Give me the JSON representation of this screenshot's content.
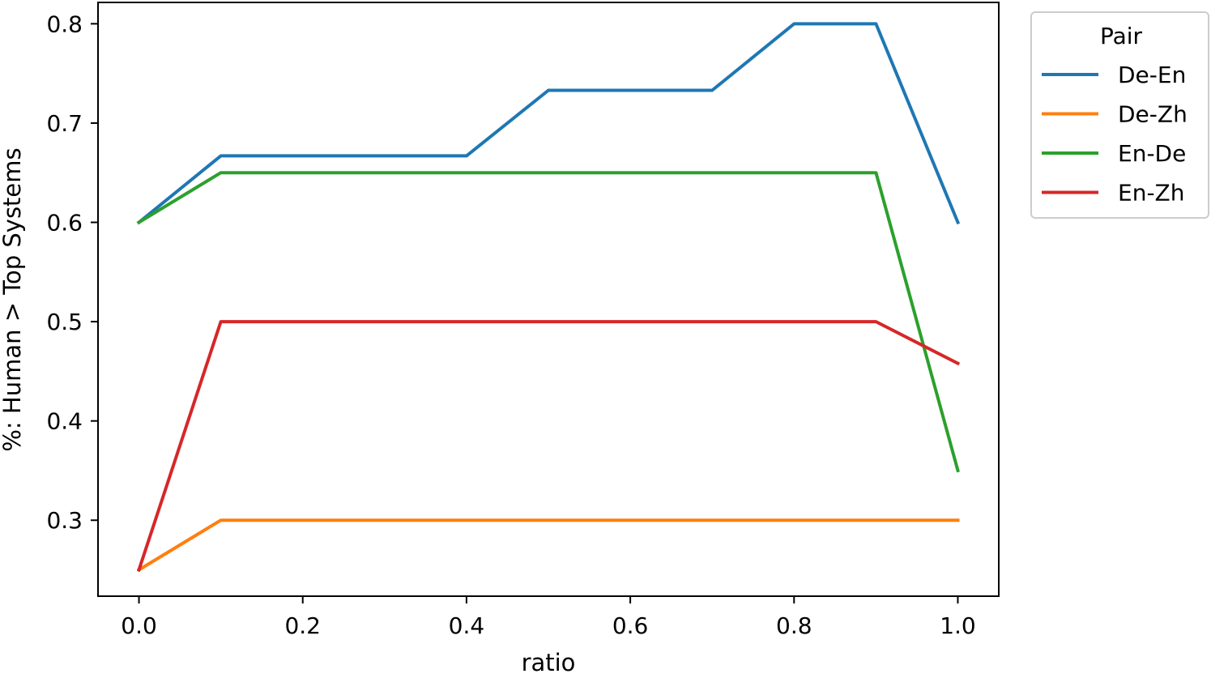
{
  "chart_data": {
    "type": "line",
    "title": "",
    "xlabel": "ratio",
    "ylabel": "%: Human > Top Systems",
    "x": [
      0.0,
      0.1,
      0.2,
      0.3,
      0.4,
      0.5,
      0.6,
      0.7,
      0.8,
      0.9,
      1.0
    ],
    "xlim": [
      -0.05,
      1.05
    ],
    "ylim": [
      0.2235,
      0.8215
    ],
    "xticks": [
      0.0,
      0.2,
      0.4,
      0.6,
      0.8,
      1.0
    ],
    "xtick_labels": [
      "0.0",
      "0.2",
      "0.4",
      "0.6",
      "0.8",
      "1.0"
    ],
    "yticks": [
      0.3,
      0.4,
      0.5,
      0.6,
      0.7,
      0.8
    ],
    "ytick_labels": [
      "0.3",
      "0.4",
      "0.5",
      "0.6",
      "0.7",
      "0.8"
    ],
    "grid": false,
    "legend": {
      "title": "Pair",
      "placement": "outside upper right"
    },
    "series": [
      {
        "name": "De-En",
        "color": "#1f77b4",
        "values": [
          0.6,
          0.667,
          0.667,
          0.667,
          0.667,
          0.733,
          0.733,
          0.733,
          0.8,
          0.8,
          0.6
        ]
      },
      {
        "name": "De-Zh",
        "color": "#ff7f0e",
        "values": [
          0.25,
          0.3,
          0.3,
          0.3,
          0.3,
          0.3,
          0.3,
          0.3,
          0.3,
          0.3,
          0.3
        ]
      },
      {
        "name": "En-De",
        "color": "#2ca02c",
        "values": [
          0.6,
          0.65,
          0.65,
          0.65,
          0.65,
          0.65,
          0.65,
          0.65,
          0.65,
          0.65,
          0.35
        ]
      },
      {
        "name": "En-Zh",
        "color": "#d62728",
        "values": [
          0.25,
          0.5,
          0.5,
          0.5,
          0.5,
          0.5,
          0.5,
          0.5,
          0.5,
          0.5,
          0.458
        ]
      }
    ]
  }
}
